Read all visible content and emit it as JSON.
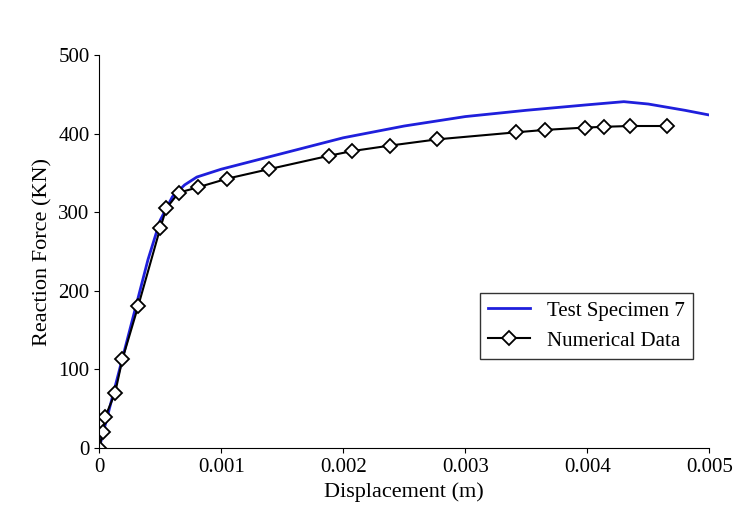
{
  "chart_data": {
    "type": "line",
    "x_label": "Displacement (m)",
    "y_label": "Reaction Force (KN)",
    "xlim": [
      0,
      0.005
    ],
    "xticks": [
      0,
      0.001,
      0.002,
      0.003,
      0.004,
      0.005
    ],
    "ylim": [
      0,
      500
    ],
    "yticks": [
      0,
      100,
      200,
      300,
      400,
      500
    ],
    "grid": false,
    "legend": "lower right",
    "series": [
      {
        "name": "Test Specimen 7",
        "color": "#1f1fdc",
        "marker": "none",
        "line_style": "solid",
        "x": [
          0,
          0.0001,
          0.0002,
          0.0003,
          0.0004,
          0.0005,
          0.0006,
          0.0007,
          0.0008,
          0.001,
          0.0015,
          0.002,
          0.0025,
          0.003,
          0.0035,
          0.004,
          0.0043,
          0.0045,
          0.0048,
          0.005
        ],
        "values": [
          0,
          60,
          120,
          180,
          240,
          290,
          320,
          335,
          345,
          355,
          375,
          395,
          410,
          422,
          430,
          437,
          441,
          438,
          430,
          424
        ]
      },
      {
        "name": "Numerical Data",
        "color": "#000000",
        "marker": "diamond",
        "line_style": "solid",
        "x": [
          0,
          3e-05,
          5e-05,
          0.00013,
          0.00019,
          0.00032,
          0.0005,
          0.00055,
          0.00065,
          0.00081,
          0.00105,
          0.00139,
          0.00188,
          0.00207,
          0.00238,
          0.00277,
          0.00342,
          0.00365,
          0.00398,
          0.00414,
          0.00435,
          0.00465
        ],
        "values": [
          0,
          20,
          40,
          70,
          113,
          181,
          280,
          305,
          325,
          332,
          343,
          355,
          372,
          378,
          385,
          393,
          402,
          405,
          408,
          409,
          410,
          410
        ]
      }
    ]
  }
}
